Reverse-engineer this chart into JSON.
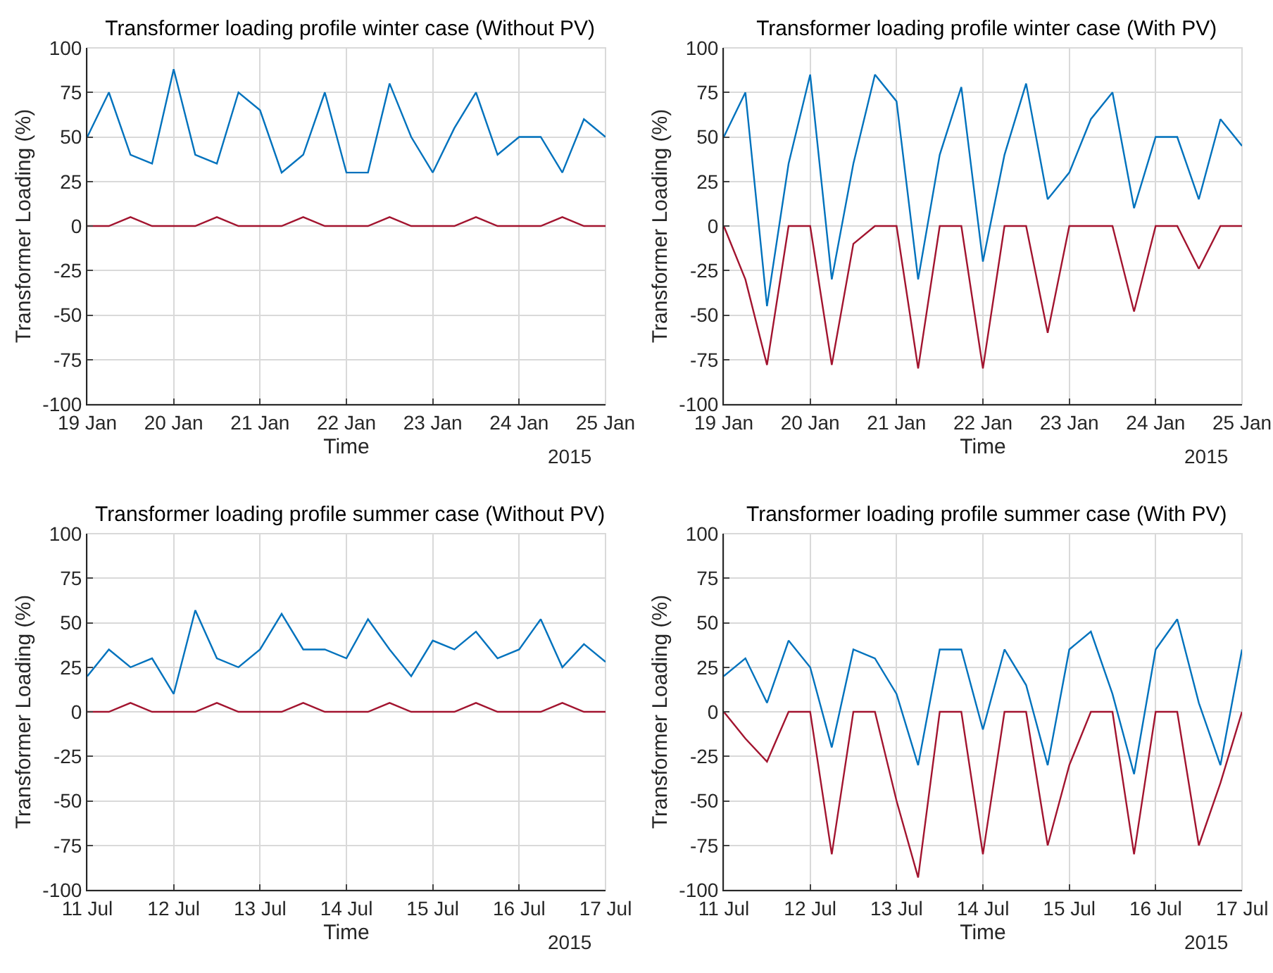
{
  "chart_data": [
    {
      "type": "line",
      "title": "Transformer loading profile winter case (Without PV)",
      "xlabel": "Time",
      "ylabel": "Transformer Loading (%)",
      "annotations": [
        "2015"
      ],
      "x": [
        "2015-01-19T00:00",
        "2015-01-19T06:00",
        "2015-01-19T12:00",
        "2015-01-19T18:00",
        "2015-01-20T00:00",
        "2015-01-20T06:00",
        "2015-01-20T12:00",
        "2015-01-20T18:00",
        "2015-01-21T00:00",
        "2015-01-21T06:00",
        "2015-01-21T12:00",
        "2015-01-21T18:00",
        "2015-01-22T00:00",
        "2015-01-22T06:00",
        "2015-01-22T12:00",
        "2015-01-22T18:00",
        "2015-01-23T00:00",
        "2015-01-23T06:00",
        "2015-01-23T12:00",
        "2015-01-23T18:00",
        "2015-01-24T00:00",
        "2015-01-24T06:00",
        "2015-01-24T12:00",
        "2015-01-24T18:00",
        "2015-01-25T00:00"
      ],
      "series": [
        {
          "color": "#0072bd",
          "values": [
            50,
            75,
            40,
            35,
            88,
            40,
            35,
            75,
            65,
            30,
            40,
            75,
            30,
            30,
            80,
            50,
            30,
            55,
            75,
            40,
            50,
            50,
            30,
            60,
            50
          ]
        },
        {
          "color": "#a2142f",
          "values": [
            0,
            0,
            5,
            0,
            0,
            0,
            5,
            0,
            0,
            0,
            5,
            0,
            0,
            0,
            5,
            0,
            0,
            0,
            5,
            0,
            0,
            0,
            5,
            0,
            0
          ]
        }
      ],
      "xlim": [
        "2015-01-19T00:00",
        "2015-01-25T00:00"
      ],
      "xticks": [
        {
          "value": "2015-01-19",
          "label": "19 Jan"
        },
        {
          "value": "2015-01-20",
          "label": "20 Jan"
        },
        {
          "value": "2015-01-21",
          "label": "21 Jan"
        },
        {
          "value": "2015-01-22",
          "label": "22 Jan"
        },
        {
          "value": "2015-01-23",
          "label": "23 Jan"
        },
        {
          "value": "2015-01-24",
          "label": "24 Jan"
        },
        {
          "value": "2015-01-25",
          "label": "25 Jan"
        }
      ],
      "ylim": [
        -100,
        100
      ],
      "yticks": [
        -100,
        -75,
        -50,
        -25,
        0,
        25,
        50,
        75,
        100
      ],
      "grid": true,
      "line_style": "solid"
    },
    {
      "type": "line",
      "title": "Transformer loading profile winter case (With PV)",
      "xlabel": "Time",
      "ylabel": "Transformer Loading (%)",
      "annotations": [
        "2015"
      ],
      "x": [
        "2015-01-19T00:00",
        "2015-01-19T06:00",
        "2015-01-19T12:00",
        "2015-01-19T18:00",
        "2015-01-20T00:00",
        "2015-01-20T06:00",
        "2015-01-20T12:00",
        "2015-01-20T18:00",
        "2015-01-21T00:00",
        "2015-01-21T06:00",
        "2015-01-21T12:00",
        "2015-01-21T18:00",
        "2015-01-22T00:00",
        "2015-01-22T06:00",
        "2015-01-22T12:00",
        "2015-01-22T18:00",
        "2015-01-23T00:00",
        "2015-01-23T06:00",
        "2015-01-23T12:00",
        "2015-01-23T18:00",
        "2015-01-24T00:00",
        "2015-01-24T06:00",
        "2015-01-24T12:00",
        "2015-01-24T18:00",
        "2015-01-25T00:00"
      ],
      "series": [
        {
          "color": "#0072bd",
          "values": [
            50,
            75,
            -45,
            35,
            85,
            -30,
            35,
            85,
            70,
            -30,
            40,
            78,
            -20,
            40,
            80,
            15,
            30,
            60,
            75,
            10,
            50,
            50,
            15,
            60,
            45
          ]
        },
        {
          "color": "#a2142f",
          "values": [
            0,
            -30,
            -78,
            0,
            0,
            -78,
            -10,
            0,
            0,
            -80,
            0,
            0,
            -80,
            0,
            0,
            -60,
            0,
            0,
            0,
            -48,
            0,
            0,
            -24,
            0,
            0
          ]
        }
      ],
      "xlim": [
        "2015-01-19T00:00",
        "2015-01-25T00:00"
      ],
      "xticks": [
        {
          "value": "2015-01-19",
          "label": "19 Jan"
        },
        {
          "value": "2015-01-20",
          "label": "20 Jan"
        },
        {
          "value": "2015-01-21",
          "label": "21 Jan"
        },
        {
          "value": "2015-01-22",
          "label": "22 Jan"
        },
        {
          "value": "2015-01-23",
          "label": "23 Jan"
        },
        {
          "value": "2015-01-24",
          "label": "24 Jan"
        },
        {
          "value": "2015-01-25",
          "label": "25 Jan"
        }
      ],
      "ylim": [
        -100,
        100
      ],
      "yticks": [
        -100,
        -75,
        -50,
        -25,
        0,
        25,
        50,
        75,
        100
      ],
      "grid": true,
      "line_style": "solid"
    },
    {
      "type": "line",
      "title": "Transformer loading profile summer case (Without PV)",
      "xlabel": "Time",
      "ylabel": "Transformer Loading (%)",
      "annotations": [
        "2015"
      ],
      "x": [
        "2015-07-11T00:00",
        "2015-07-11T06:00",
        "2015-07-11T12:00",
        "2015-07-11T18:00",
        "2015-07-12T00:00",
        "2015-07-12T06:00",
        "2015-07-12T12:00",
        "2015-07-12T18:00",
        "2015-07-13T00:00",
        "2015-07-13T06:00",
        "2015-07-13T12:00",
        "2015-07-13T18:00",
        "2015-07-14T00:00",
        "2015-07-14T06:00",
        "2015-07-14T12:00",
        "2015-07-14T18:00",
        "2015-07-15T00:00",
        "2015-07-15T06:00",
        "2015-07-15T12:00",
        "2015-07-15T18:00",
        "2015-07-16T00:00",
        "2015-07-16T06:00",
        "2015-07-16T12:00",
        "2015-07-16T18:00",
        "2015-07-17T00:00"
      ],
      "series": [
        {
          "color": "#0072bd",
          "values": [
            20,
            35,
            25,
            30,
            10,
            57,
            30,
            25,
            35,
            55,
            35,
            35,
            30,
            52,
            35,
            20,
            40,
            35,
            45,
            30,
            35,
            52,
            25,
            38,
            28
          ]
        },
        {
          "color": "#a2142f",
          "values": [
            0,
            0,
            5,
            0,
            0,
            0,
            5,
            0,
            0,
            0,
            5,
            0,
            0,
            0,
            5,
            0,
            0,
            0,
            5,
            0,
            0,
            0,
            5,
            0,
            0
          ]
        }
      ],
      "xlim": [
        "2015-07-11T00:00",
        "2015-07-17T00:00"
      ],
      "xticks": [
        {
          "value": "2015-07-11",
          "label": "11 Jul"
        },
        {
          "value": "2015-07-12",
          "label": "12 Jul"
        },
        {
          "value": "2015-07-13",
          "label": "13 Jul"
        },
        {
          "value": "2015-07-14",
          "label": "14 Jul"
        },
        {
          "value": "2015-07-15",
          "label": "15 Jul"
        },
        {
          "value": "2015-07-16",
          "label": "16 Jul"
        },
        {
          "value": "2015-07-17",
          "label": "17 Jul"
        }
      ],
      "ylim": [
        -100,
        100
      ],
      "yticks": [
        -100,
        -75,
        -50,
        -25,
        0,
        25,
        50,
        75,
        100
      ],
      "grid": true,
      "line_style": "solid"
    },
    {
      "type": "line",
      "title": "Transformer loading profile summer case (With PV)",
      "xlabel": "Time",
      "ylabel": "Transformer Loading (%)",
      "annotations": [
        "2015"
      ],
      "x": [
        "2015-07-11T00:00",
        "2015-07-11T06:00",
        "2015-07-11T12:00",
        "2015-07-11T18:00",
        "2015-07-12T00:00",
        "2015-07-12T06:00",
        "2015-07-12T12:00",
        "2015-07-12T18:00",
        "2015-07-13T00:00",
        "2015-07-13T06:00",
        "2015-07-13T12:00",
        "2015-07-13T18:00",
        "2015-07-14T00:00",
        "2015-07-14T06:00",
        "2015-07-14T12:00",
        "2015-07-14T18:00",
        "2015-07-15T00:00",
        "2015-07-15T06:00",
        "2015-07-15T12:00",
        "2015-07-15T18:00",
        "2015-07-16T00:00",
        "2015-07-16T06:00",
        "2015-07-16T12:00",
        "2015-07-16T18:00",
        "2015-07-17T00:00"
      ],
      "series": [
        {
          "color": "#0072bd",
          "values": [
            20,
            30,
            5,
            40,
            25,
            -20,
            35,
            30,
            10,
            -30,
            35,
            35,
            -10,
            35,
            15,
            -30,
            35,
            45,
            10,
            -35,
            35,
            52,
            5,
            -30,
            35
          ]
        },
        {
          "color": "#a2142f",
          "values": [
            0,
            -15,
            -28,
            0,
            0,
            -80,
            0,
            0,
            -50,
            -93,
            0,
            0,
            -80,
            0,
            0,
            -75,
            -30,
            0,
            0,
            -80,
            0,
            0,
            -75,
            -40,
            0
          ]
        }
      ],
      "xlim": [
        "2015-07-11T00:00",
        "2015-07-17T00:00"
      ],
      "xticks": [
        {
          "value": "2015-07-11",
          "label": "11 Jul"
        },
        {
          "value": "2015-07-12",
          "label": "12 Jul"
        },
        {
          "value": "2015-07-13",
          "label": "13 Jul"
        },
        {
          "value": "2015-07-14",
          "label": "14 Jul"
        },
        {
          "value": "2015-07-15",
          "label": "15 Jul"
        },
        {
          "value": "2015-07-16",
          "label": "16 Jul"
        },
        {
          "value": "2015-07-17",
          "label": "17 Jul"
        }
      ],
      "ylim": [
        -100,
        100
      ],
      "yticks": [
        -100,
        -75,
        -50,
        -25,
        0,
        25,
        50,
        75,
        100
      ],
      "grid": true,
      "line_style": "solid"
    }
  ]
}
